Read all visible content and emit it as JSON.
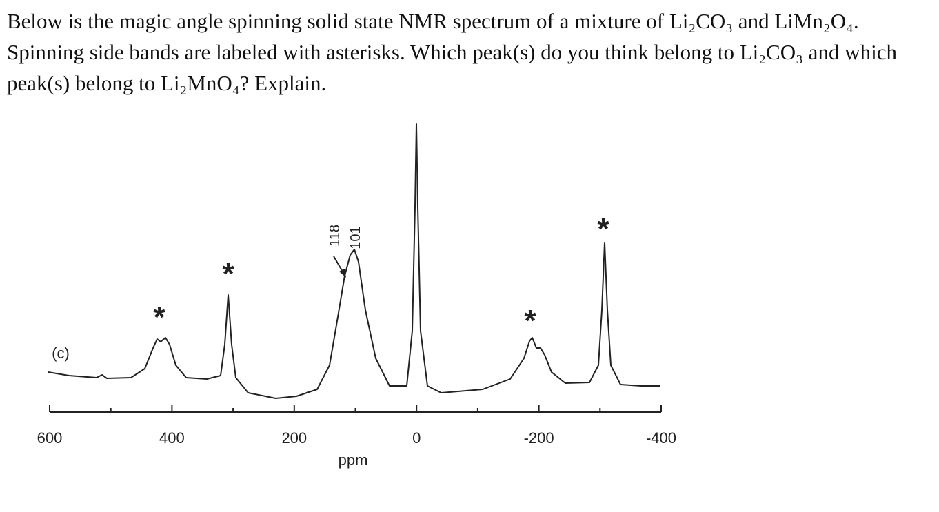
{
  "question": "Below is the magic angle spinning solid state NMR spectrum of a mixture of Li₂CO₃ and LiMn₂O₄. Spinning side bands are labeled with asterisks. Which peak(s) do you think belong to Li₂CO₃ and which peak(s) belong to Li₂MnO₄? Explain.",
  "figure": {
    "panel_label": "(c)",
    "xlabel": "ppm",
    "xlim": [
      600,
      -400
    ],
    "xticks": [
      600,
      400,
      200,
      0,
      -200,
      -400
    ],
    "minor_xticks": [
      500,
      300,
      100,
      -100,
      -300
    ],
    "annotations": {
      "peak_a": "118",
      "peak_b": "101"
    },
    "asterisks": [
      "*",
      "*",
      "*",
      "*"
    ]
  }
}
